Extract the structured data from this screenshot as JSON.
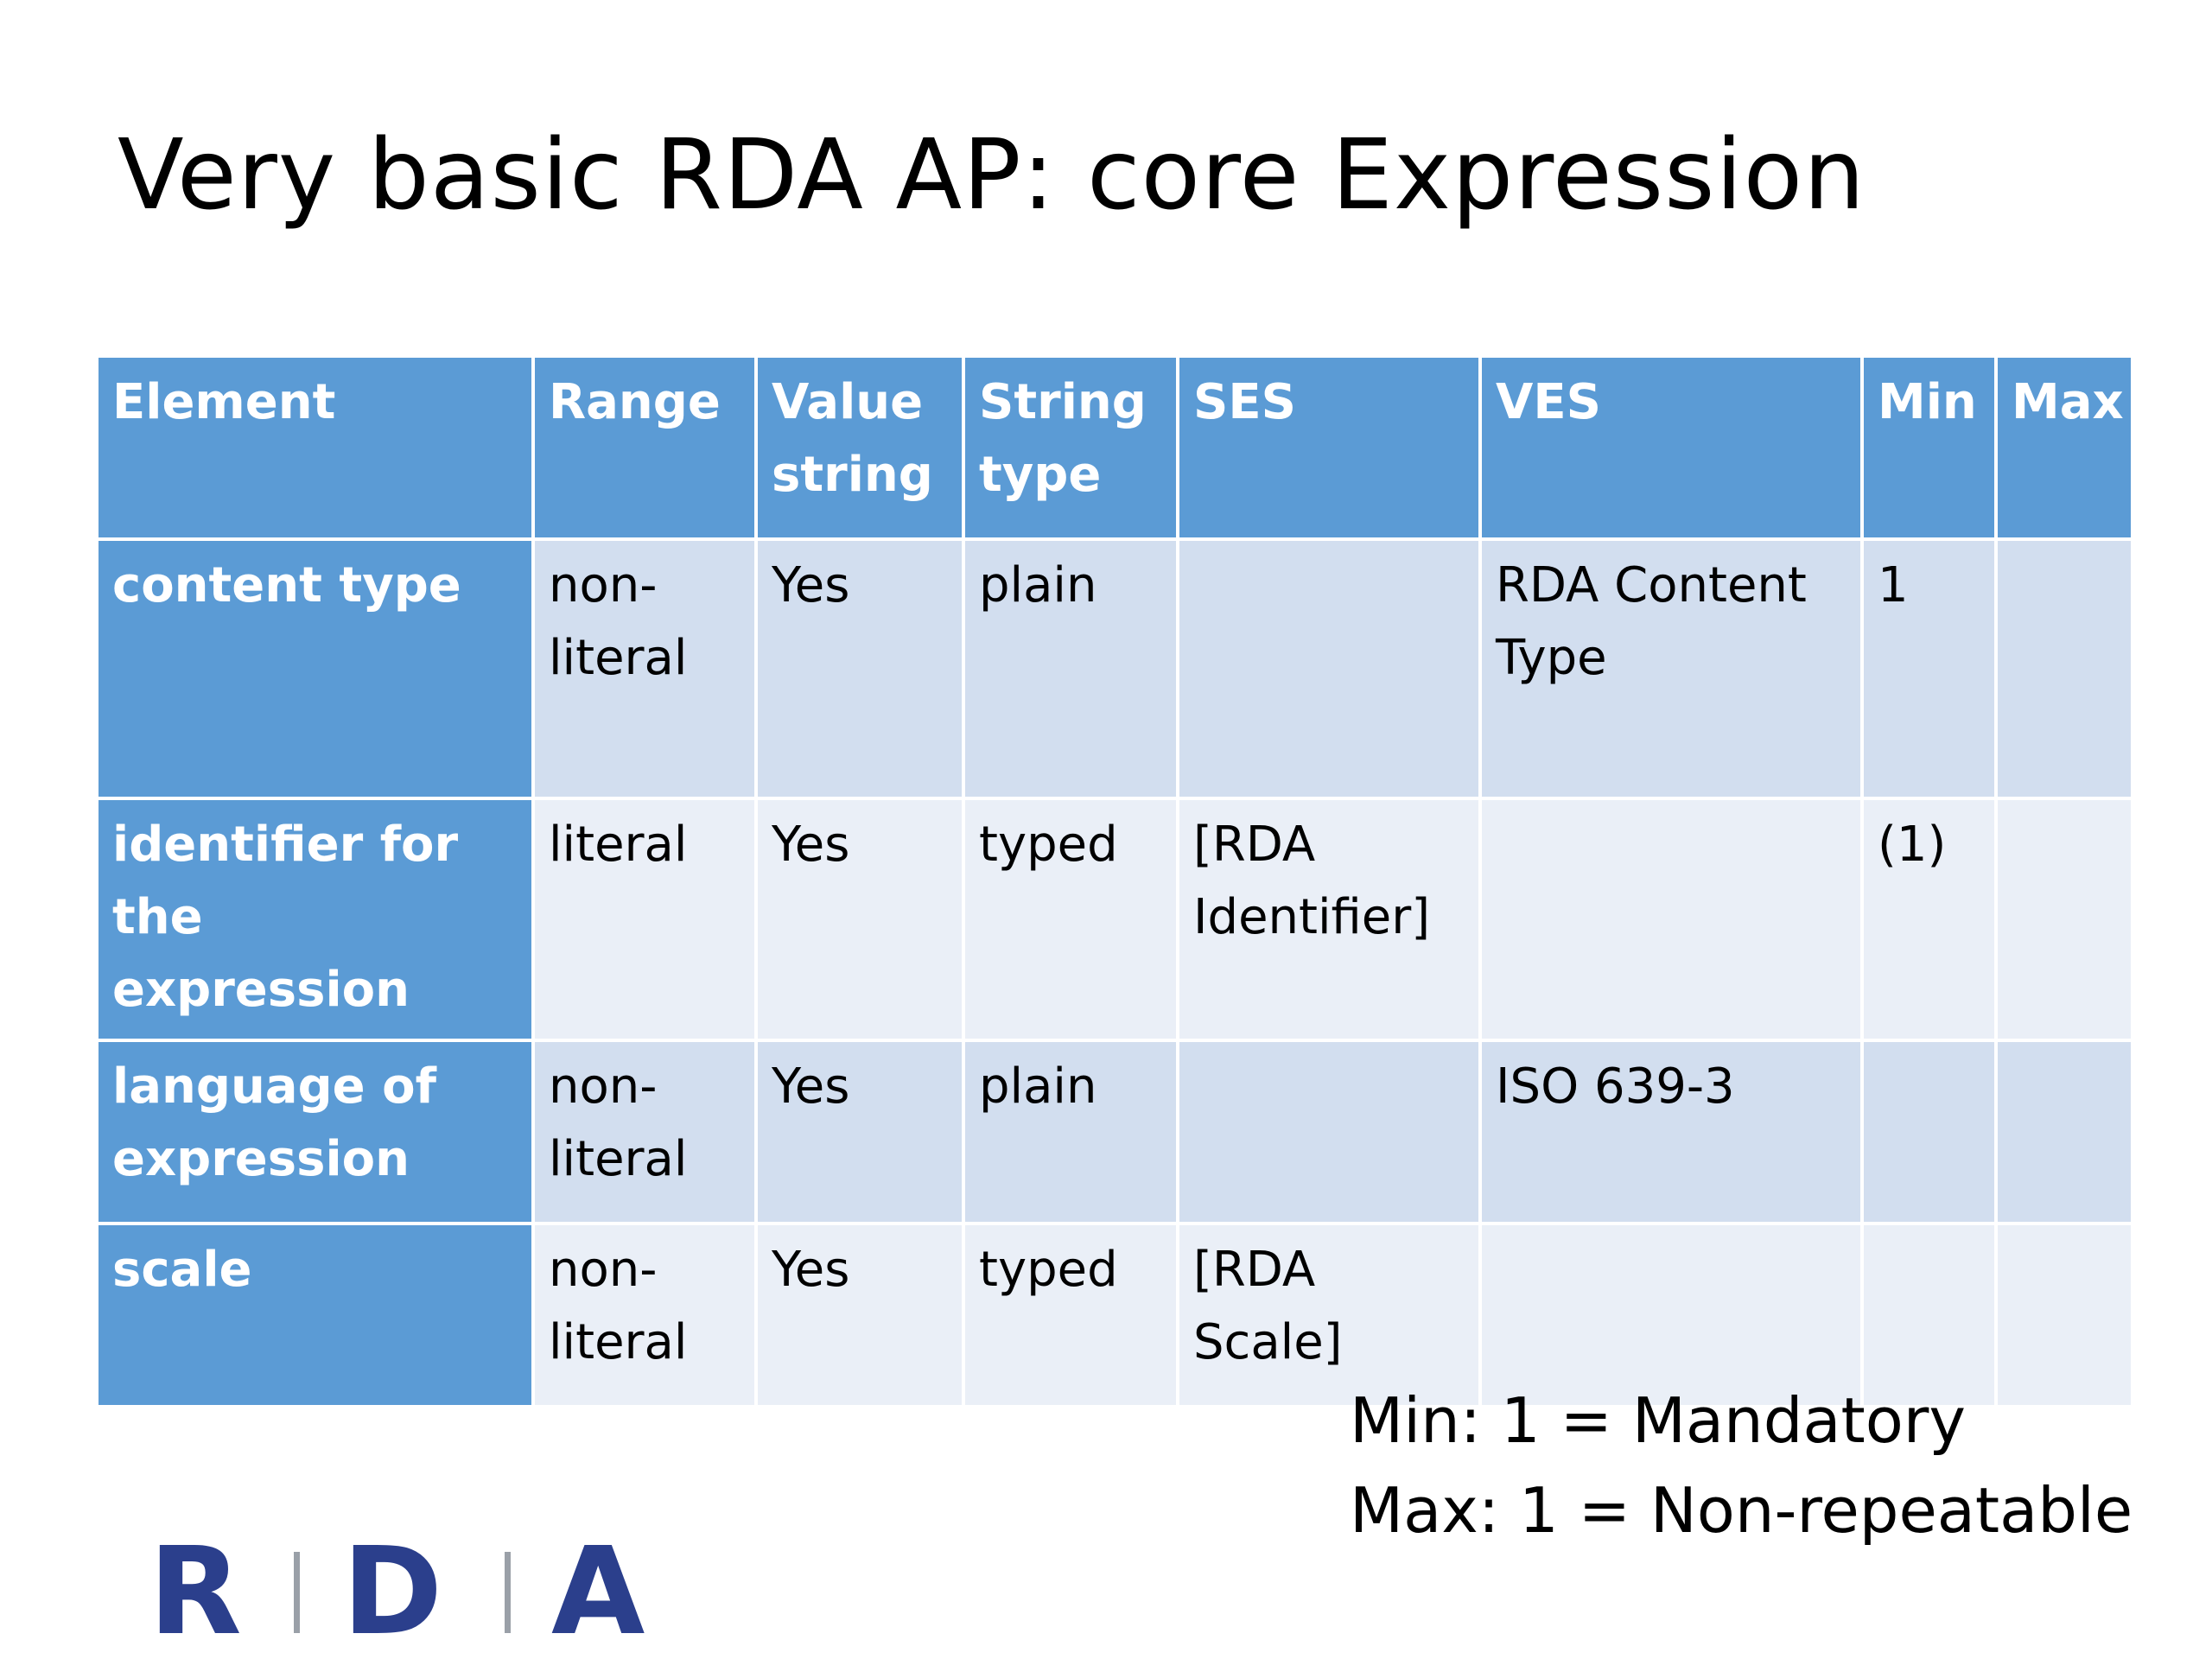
{
  "slide": {
    "title": "Very basic RDA AP: core Expression"
  },
  "table": {
    "headers": [
      "Element",
      "Range",
      "Value\nstring",
      "String\ntype",
      "SES",
      "VES",
      "Min",
      "Max"
    ],
    "rows": [
      {
        "element": "content type",
        "range": "non-\nliteral",
        "value_string": "Yes",
        "string_type": "plain",
        "ses": "",
        "ves": "RDA Content\nType",
        "min": "1",
        "max": ""
      },
      {
        "element": "identifier for the\nexpression",
        "range": "literal",
        "value_string": "Yes",
        "string_type": "typed",
        "ses": "[RDA\nIdentifier]",
        "ves": "",
        "min": "(1)",
        "max": ""
      },
      {
        "element": "language of\nexpression",
        "range": "non-\nliteral",
        "value_string": "Yes",
        "string_type": "plain",
        "ses": "",
        "ves": "ISO 639-3",
        "min": "",
        "max": ""
      },
      {
        "element": "scale",
        "range": "non-\nliteral",
        "value_string": "Yes",
        "string_type": "typed",
        "ses": "[RDA Scale]",
        "ves": "",
        "min": "",
        "max": ""
      }
    ]
  },
  "legend": {
    "min_note": "Min: 1 = Mandatory",
    "max_note": "Max: 1 = Non-repeatable"
  },
  "logo": {
    "letters": [
      "R",
      "D",
      "A"
    ],
    "color": "#2b3f8c"
  },
  "colors": {
    "header_bg": "#5b9bd5",
    "row_odd_bg": "#d2deef",
    "row_even_bg": "#eaeff7"
  }
}
